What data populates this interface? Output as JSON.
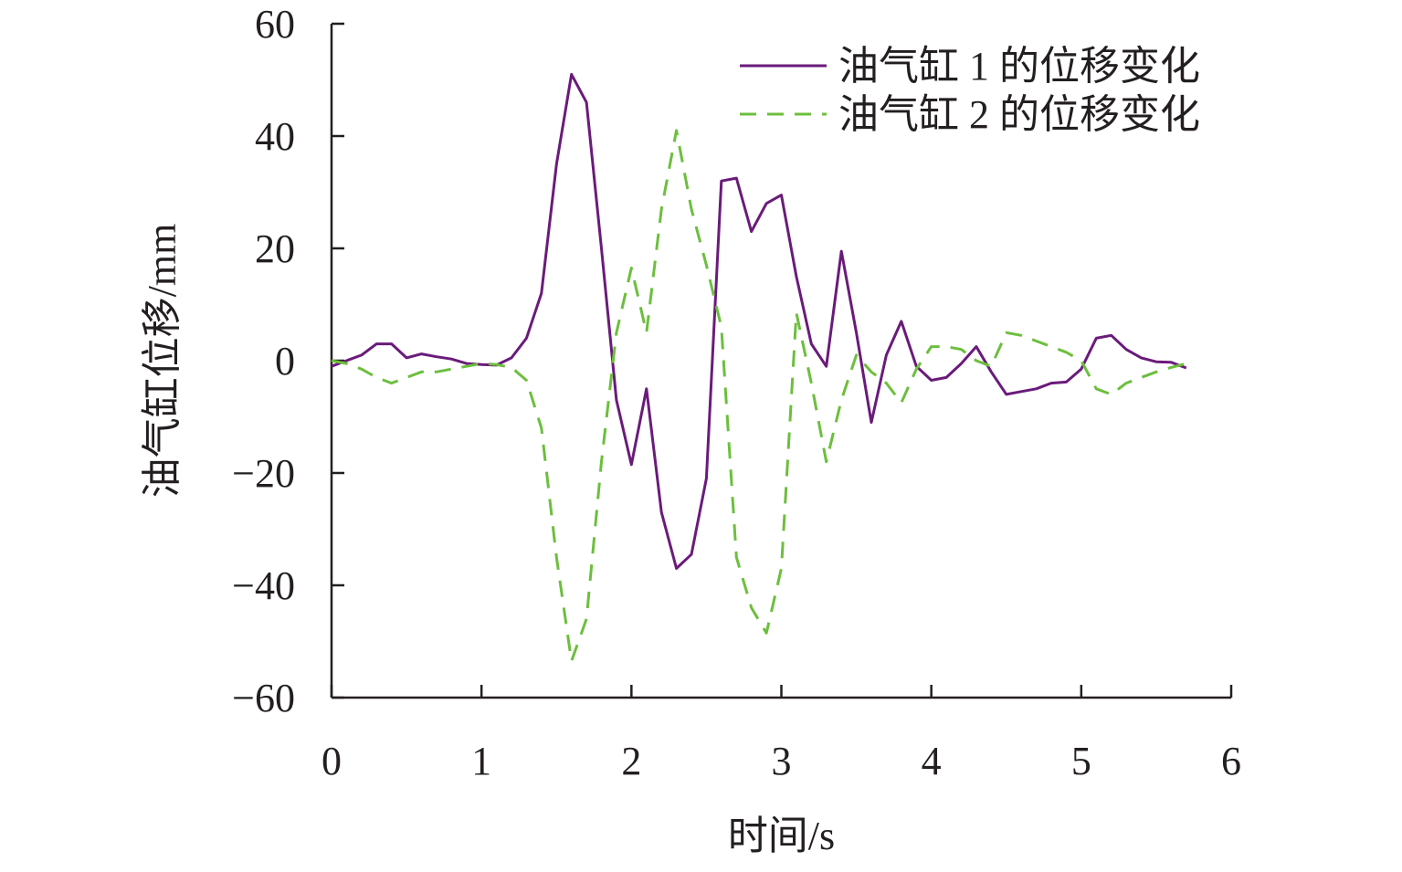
{
  "chart_data": {
    "type": "line",
    "title": "",
    "xlabel": "时间/s",
    "ylabel": "油气缸位移/mm",
    "xlim": [
      0,
      6
    ],
    "ylim": [
      -60,
      60
    ],
    "xticks": [
      0,
      1,
      2,
      3,
      4,
      5,
      6
    ],
    "yticks": [
      60,
      40,
      20,
      0,
      -20,
      -40,
      -60
    ],
    "ytick_labels": [
      "60",
      "40",
      "20",
      "0",
      "−20",
      "−40",
      "−60"
    ],
    "grid": false,
    "legend_position": "top-right",
    "series": [
      {
        "name": "油气缸 1 的位移变化",
        "color": "#6a1b7a",
        "dash": "solid",
        "x": [
          0,
          0.1,
          0.2,
          0.3,
          0.4,
          0.5,
          0.6,
          0.7,
          0.8,
          0.9,
          1.0,
          1.1,
          1.2,
          1.3,
          1.4,
          1.5,
          1.6,
          1.7,
          1.8,
          1.9,
          2.0,
          2.1,
          2.2,
          2.3,
          2.4,
          2.5,
          2.6,
          2.7,
          2.8,
          2.9,
          3.0,
          3.1,
          3.2,
          3.3,
          3.4,
          3.5,
          3.6,
          3.7,
          3.8,
          3.9,
          4.0,
          4.1,
          4.2,
          4.3,
          4.4,
          4.5,
          4.6,
          4.7,
          4.8,
          4.9,
          5.0,
          5.1,
          5.2,
          5.3,
          5.4,
          5.5,
          5.6,
          5.7
        ],
        "y": [
          -1,
          0,
          1,
          3,
          3,
          0.5,
          1.2,
          0.7,
          0.3,
          -0.5,
          -0.7,
          -0.8,
          0.5,
          4,
          12,
          35,
          51,
          46,
          20,
          -7,
          -18.5,
          -5,
          -27,
          -37,
          -34.5,
          -21,
          32,
          32.5,
          23,
          28,
          29.5,
          15,
          3,
          -1,
          19.5,
          5,
          -11,
          1,
          7,
          -1,
          -3.5,
          -3,
          -0.5,
          2.5,
          -2,
          -6,
          -5.5,
          -5,
          -4,
          -3.8,
          -1.5,
          4,
          4.5,
          2,
          0.5,
          -0.2,
          -0.3,
          -1.3
        ]
      },
      {
        "name": "油气缸 2 的位移变化",
        "color": "#6cbf3d",
        "dash": "dashed",
        "x": [
          0,
          0.1,
          0.2,
          0.3,
          0.4,
          0.5,
          0.6,
          0.7,
          0.8,
          0.9,
          1.0,
          1.1,
          1.2,
          1.3,
          1.4,
          1.5,
          1.6,
          1.7,
          1.8,
          1.9,
          2.0,
          2.1,
          2.2,
          2.3,
          2.4,
          2.5,
          2.6,
          2.7,
          2.8,
          2.9,
          3.0,
          3.1,
          3.2,
          3.3,
          3.4,
          3.5,
          3.6,
          3.7,
          3.8,
          3.9,
          4.0,
          4.1,
          4.2,
          4.3,
          4.4,
          4.5,
          4.6,
          4.7,
          4.8,
          4.9,
          5.0,
          5.1,
          5.2,
          5.3,
          5.4,
          5.5,
          5.6,
          5.7
        ],
        "y": [
          0,
          -0.5,
          -1.5,
          -3,
          -4,
          -3,
          -2,
          -2,
          -1.5,
          -1,
          -0.5,
          -0.7,
          -1.2,
          -3.5,
          -12,
          -35,
          -53.5,
          -46,
          -18,
          5,
          16.5,
          5,
          27,
          41,
          27,
          17,
          6,
          -35,
          -44,
          -48.5,
          -37,
          8.5,
          -4,
          -18,
          -7,
          1,
          -2,
          -4,
          -7.5,
          -1.5,
          2.5,
          2.5,
          2,
          0,
          -1,
          5,
          4.5,
          3.5,
          2.5,
          1.5,
          0,
          -5,
          -6,
          -4,
          -3,
          -2,
          -1.2,
          -0.5
        ]
      }
    ]
  }
}
